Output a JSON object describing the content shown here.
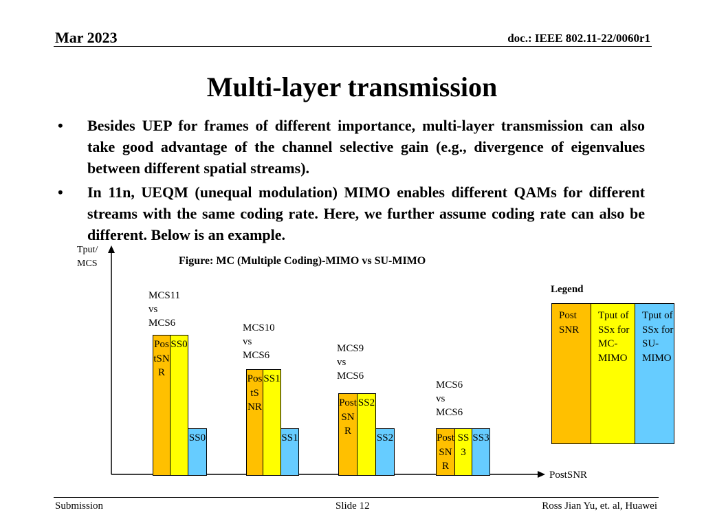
{
  "header": {
    "date": "Mar 2023",
    "doc": "doc.: IEEE 802.11-22/0060r1"
  },
  "title": "Multi-layer transmission",
  "bullets": [
    {
      "symbol": "•",
      "text": "Besides UEP for frames of different importance, multi-layer transmission can also take good advantage of the channel selective gain (e.g., divergence of eigenvalues between different spatial streams)."
    },
    {
      "symbol": "•",
      "text": "In 11n, UEQM (unequal modulation) MIMO enables different QAMs for different streams with the same coding rate. Here, we further assume coding rate can also be different. Below is an example."
    }
  ],
  "figure": {
    "caption": "Figure: MC (Multiple Coding)-MIMO vs SU-MIMO",
    "y_axis_label": "Tput/ MCS",
    "x_axis_label": "PostSNR",
    "groups": [
      {
        "mcs_label": "MCS11 vs MCS6",
        "postsnr_bar": "PostSNR",
        "mc_bar": "SS0",
        "su_bar": "SS0"
      },
      {
        "mcs_label": "MCS10 vs MCS6",
        "postsnr_bar": "PostSNR",
        "mc_bar": "SS1",
        "su_bar": "SS1"
      },
      {
        "mcs_label": "MCS9 vs MCS6",
        "postsnr_bar": "PostSNR",
        "mc_bar": "SS2",
        "su_bar": "SS2"
      },
      {
        "mcs_label": "MCS6 vs MCS6",
        "postsnr_bar": "PostSNR",
        "mc_bar": "SS3",
        "su_bar": "SS3"
      }
    ],
    "legend": {
      "title": "Legend",
      "items": [
        {
          "label": "Post SNR",
          "color": "#ffc000"
        },
        {
          "label": "Tput of SSx for MC-MIMO",
          "color": "#ffff00"
        },
        {
          "label": "Tput of SSx for SU-MIMO",
          "color": "#66ccff"
        }
      ]
    }
  },
  "footer": {
    "left": "Submission",
    "center": "Slide 12",
    "right": "Ross Jian Yu, et. al, Huawei"
  }
}
